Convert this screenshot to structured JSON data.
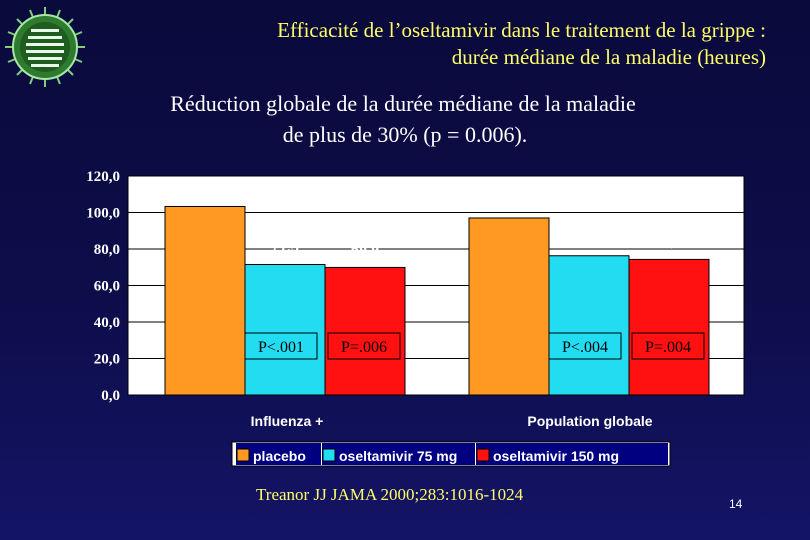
{
  "slide": {
    "title_line1": "Efficacité de l’oseltamivir dans le traitement de la grippe :",
    "title_line2": "durée médiane de la maladie (heures)",
    "subtitle_line1": "Réduction globale de la durée médiane de la maladie",
    "subtitle_line2": "de plus de 30% (p = 0.006).",
    "citation": "Treanor JJ JAMA 2000;283:1016-1024",
    "page_number": "14"
  },
  "chart_data": {
    "type": "bar",
    "categories": [
      "Influenza +",
      "Population globale"
    ],
    "series": [
      {
        "name": "placebo",
        "values": [
          103.3,
          97.0
        ],
        "labels": [
          "103,3",
          "97,0"
        ],
        "color": "#ff9922",
        "pvalues": [
          "",
          ""
        ]
      },
      {
        "name": "oseltamivir 75 mg",
        "values": [
          71.5,
          76.3
        ],
        "labels": [
          "71,5",
          "76,3"
        ],
        "color": "#22ddf2",
        "pvalues": [
          "P<.001",
          "P<.004"
        ]
      },
      {
        "name": "oseltamivir 150 mg",
        "values": [
          69.9,
          74.3
        ],
        "labels": [
          "69,9",
          "74,3"
        ],
        "color": "#ff1111",
        "pvalues": [
          "P=.006",
          "P=.004"
        ]
      }
    ],
    "yticks": [
      "0,0",
      "20,0",
      "40,0",
      "60,0",
      "80,0",
      "100,0",
      "120,0"
    ],
    "ylim": [
      0,
      120
    ],
    "grid": true,
    "legend_position": "bottom",
    "colors": {
      "plot_background": "#ffffff",
      "axis_text": "#ffffff",
      "label_text": "#ffffff"
    }
  }
}
